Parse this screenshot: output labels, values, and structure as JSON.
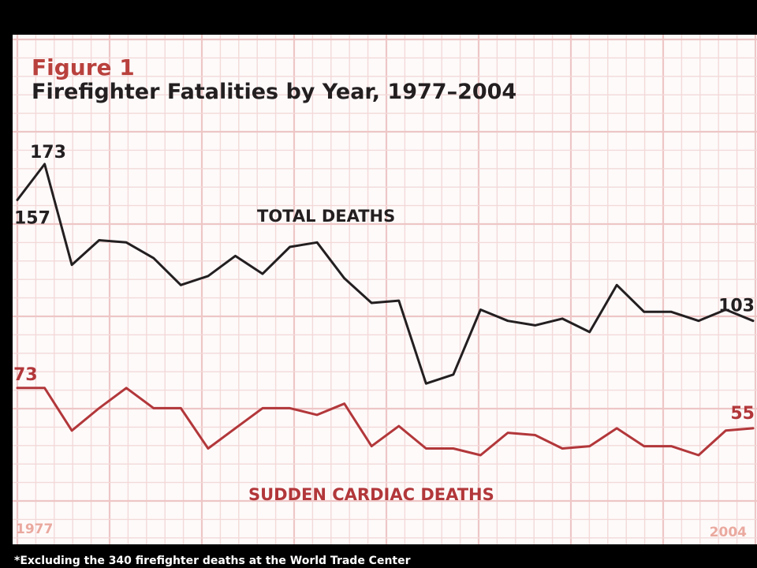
{
  "figure_label": "Figure 1",
  "colors": {
    "background": "#000000",
    "paper": "#fefafa",
    "grid_minor": "#f3d9d9",
    "grid_major": "#eec6c6",
    "title_red": "#b9413d",
    "series_total": "#231f20",
    "series_cardiac": "#b2373a",
    "year_label": "#eaa99f",
    "footnote": "#ffffff"
  },
  "chart_data": {
    "type": "line",
    "title": "Firefighter Fatalities by Year, 1977–2004",
    "xlabel": "",
    "ylabel": "",
    "x_start_label": "1977",
    "x_end_label": "2004",
    "x": [
      1977,
      1978,
      1979,
      1980,
      1981,
      1982,
      1983,
      1984,
      1985,
      1986,
      1987,
      1988,
      1989,
      1990,
      1991,
      1992,
      1993,
      1994,
      1995,
      1996,
      1997,
      1998,
      1999,
      2000,
      2001,
      2002,
      2003,
      2004
    ],
    "ylim": [
      40,
      185
    ],
    "grid": true,
    "series": [
      {
        "name": "TOTAL DEATHS",
        "color": "#231f20",
        "values": [
          157,
          173,
          128,
          139,
          138,
          131,
          119,
          123,
          132,
          124,
          136,
          138,
          122,
          111,
          112,
          75,
          79,
          108,
          103,
          101,
          104,
          98,
          119,
          107,
          107,
          103,
          108,
          103
        ],
        "annotations": [
          {
            "label": "157",
            "x": 1977,
            "y": 157
          },
          {
            "label": "173",
            "x": 1978,
            "y": 173
          },
          {
            "label": "103",
            "x": 2004,
            "y": 103
          }
        ]
      },
      {
        "name": "SUDDEN CARDIAC DEATHS",
        "color": "#b2373a",
        "values": [
          73,
          73,
          54,
          64,
          73,
          64,
          64,
          46,
          55,
          64,
          64,
          61,
          66,
          47,
          56,
          46,
          46,
          43,
          53,
          52,
          46,
          47,
          55,
          47,
          47,
          43,
          54,
          55
        ],
        "annotations": [
          {
            "label": "73",
            "x": 1977,
            "y": 73
          },
          {
            "label": "55",
            "x": 2004,
            "y": 55
          }
        ]
      }
    ],
    "footnote": "*Excluding the 340 firefighter deaths at the World Trade Center"
  }
}
